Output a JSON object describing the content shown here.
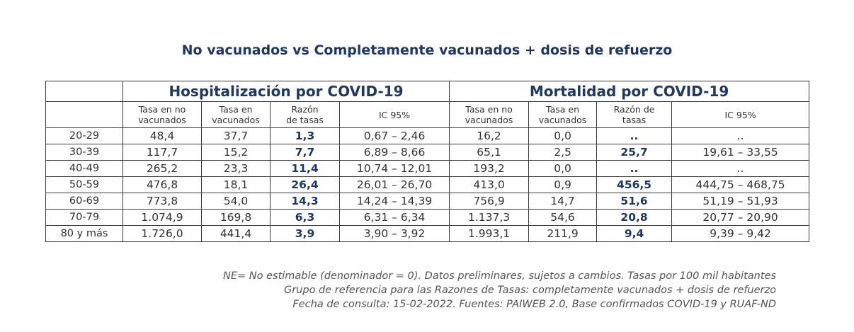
{
  "title": "No vacunados vs Completamente vacunados + dosis de refuerzo",
  "groups": {
    "hosp": "Hospitalización por COVID-19",
    "mort": "Mortalidad por COVID-19"
  },
  "subheaders": {
    "tasa_nv": [
      "Tasa en no",
      "vacunados"
    ],
    "tasa_v": [
      "Tasa en",
      "vacunados"
    ],
    "razon_hosp": [
      "Razón",
      "de tasas"
    ],
    "ic": "IC 95%",
    "razon_mort": [
      "Razón de",
      "tasas"
    ]
  },
  "rows": [
    {
      "age": "20-29",
      "h_nv": "48,4",
      "h_v": "37,7",
      "h_r": "1,3",
      "h_ic": "0,67 – 2,46",
      "m_nv": "16,2",
      "m_v": "0,0",
      "m_r": "..",
      "m_ic": ".."
    },
    {
      "age": "30-39",
      "h_nv": "117,7",
      "h_v": "15,2",
      "h_r": "7,7",
      "h_ic": "6,89 – 8,66",
      "m_nv": "65,1",
      "m_v": "2,5",
      "m_r": "25,7",
      "m_ic": "19,61 – 33,55"
    },
    {
      "age": "40-49",
      "h_nv": "265,2",
      "h_v": "23,3",
      "h_r": "11,4",
      "h_ic": "10,74 – 12,01",
      "m_nv": "193,2",
      "m_v": "0,0",
      "m_r": "..",
      "m_ic": ".."
    },
    {
      "age": "50-59",
      "h_nv": "476,8",
      "h_v": "18,1",
      "h_r": "26,4",
      "h_ic": "26,01 – 26,70",
      "m_nv": "413,0",
      "m_v": "0,9",
      "m_r": "456,5",
      "m_ic": "444,75 – 468,75"
    },
    {
      "age": "60-69",
      "h_nv": "773,8",
      "h_v": "54,0",
      "h_r": "14,3",
      "h_ic": "14,24 – 14,39",
      "m_nv": "756,9",
      "m_v": "14,7",
      "m_r": "51,6",
      "m_ic": "51,19 – 51,93"
    },
    {
      "age": "70-79",
      "h_nv": "1.074,9",
      "h_v": "169,8",
      "h_r": "6,3",
      "h_ic": "6,31 – 6,34",
      "m_nv": "1.137,3",
      "m_v": "54,6",
      "m_r": "20,8",
      "m_ic": "20,77 – 20,90"
    },
    {
      "age": "80 y más",
      "h_nv": "1.726,0",
      "h_v": "441,4",
      "h_r": "3,9",
      "h_ic": "3,90 – 3,92",
      "m_nv": "1.993,1",
      "m_v": "211,9",
      "m_r": "9,4",
      "m_ic": "9,39 – 9,42"
    }
  ],
  "notes": [
    "NE= No estimable (denominador = 0). Datos preliminares, sujetos a cambios. Tasas por 100 mil habitantes",
    "Grupo de referencia para las Razones de Tasas: completamente vacunados + dosis de refuerzo",
    "Fecha de consulta: 15-02-2022. Fuentes: PAIWEB 2.0, Base confirmados COVID-19 y RUAF-ND"
  ]
}
